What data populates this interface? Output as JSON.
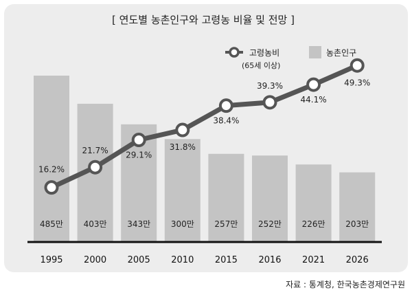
{
  "chart_data": {
    "type": "bar+line",
    "title": "[ 연도별 농촌인구와 고령농 비율 및 전망 ]",
    "categories": [
      "1995",
      "2000",
      "2005",
      "2010",
      "2015",
      "2016",
      "2021",
      "2026"
    ],
    "series": [
      {
        "name": "농촌인구",
        "type": "bar",
        "values": [
          485,
          403,
          343,
          300,
          257,
          252,
          226,
          203
        ],
        "labels": [
          "485만",
          "403만",
          "343만",
          "300만",
          "257만",
          "252만",
          "226만",
          "203만"
        ]
      },
      {
        "name": "고령농비",
        "name_sub": "(65세 이상)",
        "type": "line",
        "values": [
          16.2,
          21.7,
          29.1,
          31.8,
          38.4,
          39.3,
          44.1,
          49.3
        ],
        "labels": [
          "16.2%",
          "21.7%",
          "29.1%",
          "31.8%",
          "38.4%",
          "39.3%",
          "44.1%",
          "49.3%"
        ]
      }
    ],
    "bar_range": [
      0,
      520
    ],
    "line_range": [
      0,
      60
    ],
    "source": "자료 : 통계청, 한국농촌경제연구원",
    "colors": {
      "bar": "#c4c4c4",
      "line": "#555555",
      "panel": "#ededed"
    }
  }
}
